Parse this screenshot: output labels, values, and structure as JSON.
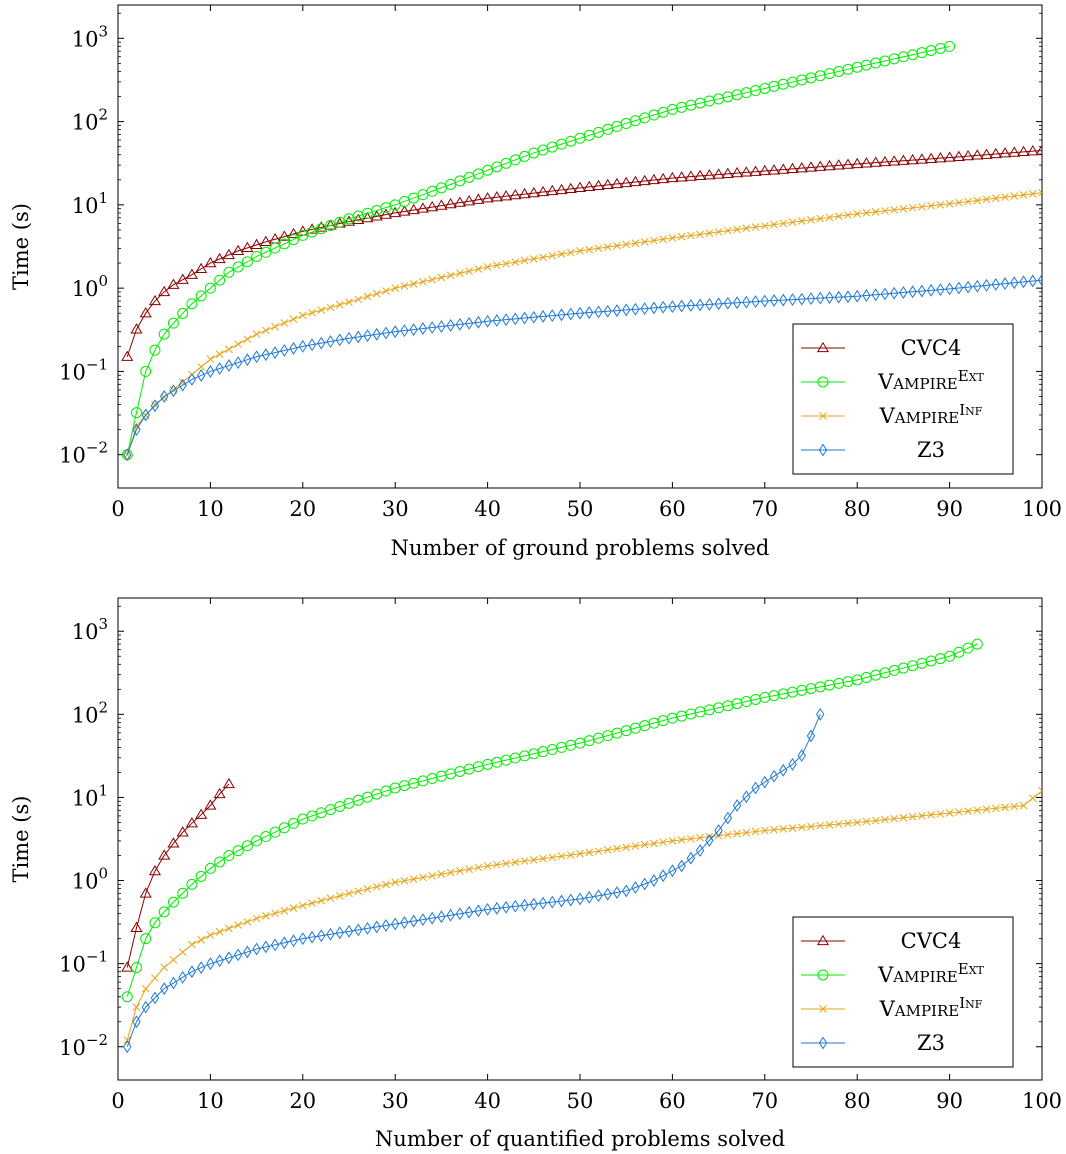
{
  "chart_data": [
    {
      "type": "line",
      "xlabel": "Number of ground problems solved",
      "ylabel": "Time (s)",
      "xlim": [
        0,
        100
      ],
      "ylim_log10": [
        -2.4,
        3.4
      ],
      "y_scale": "log",
      "grid": false,
      "legend_position": "bottom-right",
      "x_ticks": [
        "0",
        "10",
        "20",
        "30",
        "40",
        "50",
        "60",
        "70",
        "80",
        "90",
        "100"
      ],
      "y_ticks": [
        {
          "base": "10",
          "exp": "−2",
          "value": 0.01
        },
        {
          "base": "10",
          "exp": "−1",
          "value": 0.1
        },
        {
          "base": "10",
          "exp": "0",
          "value": 1
        },
        {
          "base": "10",
          "exp": "1",
          "value": 10
        },
        {
          "base": "10",
          "exp": "2",
          "value": 100
        },
        {
          "base": "10",
          "exp": "3",
          "value": 1000
        }
      ],
      "series": [
        {
          "name": "CVC4",
          "name_parts": [
            "CVC4",
            ""
          ],
          "marker": "triangle",
          "color": "#8b0000",
          "n": 100,
          "anchors": [
            [
              1,
              0.15
            ],
            [
              2,
              0.32
            ],
            [
              3,
              0.5
            ],
            [
              4,
              0.7
            ],
            [
              5,
              0.9
            ],
            [
              6,
              1.1
            ],
            [
              8,
              1.45
            ],
            [
              10,
              2.0
            ],
            [
              13,
              2.8
            ],
            [
              16,
              3.6
            ],
            [
              20,
              4.8
            ],
            [
              25,
              6.3
            ],
            [
              30,
              8.0
            ],
            [
              40,
              12.0
            ],
            [
              50,
              16.0
            ],
            [
              60,
              21.0
            ],
            [
              70,
              25.5
            ],
            [
              80,
              31.0
            ],
            [
              90,
              37.0
            ],
            [
              100,
              45.0
            ]
          ]
        },
        {
          "name": "VampireExt",
          "name_parts": [
            "Vampire",
            "Ext"
          ],
          "marker": "circle",
          "color": "#00ee00",
          "n": 90,
          "anchors": [
            [
              1,
              0.01
            ],
            [
              2,
              0.032
            ],
            [
              3,
              0.1
            ],
            [
              4,
              0.18
            ],
            [
              5,
              0.28
            ],
            [
              6,
              0.38
            ],
            [
              8,
              0.65
            ],
            [
              10,
              1.0
            ],
            [
              12,
              1.55
            ],
            [
              15,
              2.4
            ],
            [
              20,
              4.3
            ],
            [
              25,
              6.8
            ],
            [
              30,
              10.0
            ],
            [
              35,
              16.0
            ],
            [
              40,
              26.0
            ],
            [
              45,
              42.0
            ],
            [
              50,
              63.0
            ],
            [
              55,
              95.0
            ],
            [
              60,
              140.0
            ],
            [
              70,
              250.0
            ],
            [
              80,
              450.0
            ],
            [
              90,
              800.0
            ]
          ]
        },
        {
          "name": "VampireInf",
          "name_parts": [
            "Vampire",
            "Inf"
          ],
          "marker": "cross",
          "color": "#e8a317",
          "n": 100,
          "anchors": [
            [
              1,
              0.01
            ],
            [
              2,
              0.022
            ],
            [
              4,
              0.04
            ],
            [
              6,
              0.06
            ],
            [
              10,
              0.14
            ],
            [
              15,
              0.28
            ],
            [
              20,
              0.47
            ],
            [
              25,
              0.68
            ],
            [
              30,
              1.0
            ],
            [
              40,
              1.8
            ],
            [
              50,
              2.8
            ],
            [
              60,
              4.0
            ],
            [
              70,
              5.6
            ],
            [
              80,
              7.8
            ],
            [
              90,
              10.3
            ],
            [
              100,
              14.0
            ]
          ]
        },
        {
          "name": "Z3",
          "name_parts": [
            "Z3",
            ""
          ],
          "marker": "diamond",
          "color": "#1e78d6",
          "n": 100,
          "anchors": [
            [
              1,
              0.01
            ],
            [
              2,
              0.02
            ],
            [
              3,
              0.03
            ],
            [
              5,
              0.05
            ],
            [
              8,
              0.08
            ],
            [
              10,
              0.1
            ],
            [
              15,
              0.15
            ],
            [
              20,
              0.2
            ],
            [
              25,
              0.25
            ],
            [
              30,
              0.3
            ],
            [
              40,
              0.4
            ],
            [
              50,
              0.5
            ],
            [
              60,
              0.6
            ],
            [
              70,
              0.7
            ],
            [
              80,
              0.8
            ],
            [
              90,
              0.98
            ],
            [
              100,
              1.25
            ]
          ]
        }
      ]
    },
    {
      "type": "line",
      "xlabel": "Number of quantified problems solved",
      "ylabel": "Time (s)",
      "xlim": [
        0,
        100
      ],
      "ylim_log10": [
        -2.4,
        3.4
      ],
      "y_scale": "log",
      "grid": false,
      "legend_position": "bottom-right",
      "x_ticks": [
        "0",
        "10",
        "20",
        "30",
        "40",
        "50",
        "60",
        "70",
        "80",
        "90",
        "100"
      ],
      "y_ticks": [
        {
          "base": "10",
          "exp": "−2",
          "value": 0.01
        },
        {
          "base": "10",
          "exp": "−1",
          "value": 0.1
        },
        {
          "base": "10",
          "exp": "0",
          "value": 1
        },
        {
          "base": "10",
          "exp": "1",
          "value": 10
        },
        {
          "base": "10",
          "exp": "2",
          "value": 100
        },
        {
          "base": "10",
          "exp": "3",
          "value": 1000
        }
      ],
      "series": [
        {
          "name": "CVC4",
          "name_parts": [
            "CVC4",
            ""
          ],
          "marker": "triangle",
          "color": "#8b0000",
          "n": 12,
          "anchors": [
            [
              1,
              0.09
            ],
            [
              2,
              0.27
            ],
            [
              3,
              0.7
            ],
            [
              4,
              1.3
            ],
            [
              5,
              2.0
            ],
            [
              6,
              2.8
            ],
            [
              7,
              3.8
            ],
            [
              8,
              4.9
            ],
            [
              9,
              6.2
            ],
            [
              10,
              8.0
            ],
            [
              11,
              11.0
            ],
            [
              12,
              14.5
            ]
          ]
        },
        {
          "name": "VampireExt",
          "name_parts": [
            "Vampire",
            "Ext"
          ],
          "marker": "circle",
          "color": "#00ee00",
          "n": 93,
          "anchors": [
            [
              1,
              0.04
            ],
            [
              2,
              0.09
            ],
            [
              3,
              0.2
            ],
            [
              4,
              0.31
            ],
            [
              5,
              0.42
            ],
            [
              6,
              0.55
            ],
            [
              8,
              0.9
            ],
            [
              10,
              1.4
            ],
            [
              12,
              2.0
            ],
            [
              15,
              3.0
            ],
            [
              20,
              5.5
            ],
            [
              25,
              8.5
            ],
            [
              30,
              13.0
            ],
            [
              40,
              25.0
            ],
            [
              50,
              45.0
            ],
            [
              60,
              90.0
            ],
            [
              70,
              160.0
            ],
            [
              80,
              260.0
            ],
            [
              90,
              500.0
            ],
            [
              93,
              700.0
            ]
          ]
        },
        {
          "name": "VampireInf",
          "name_parts": [
            "Vampire",
            "Inf"
          ],
          "marker": "cross",
          "color": "#e8a317",
          "n": 100,
          "anchors": [
            [
              1,
              0.012
            ],
            [
              2,
              0.03
            ],
            [
              3,
              0.05
            ],
            [
              5,
              0.09
            ],
            [
              8,
              0.17
            ],
            [
              10,
              0.22
            ],
            [
              15,
              0.35
            ],
            [
              20,
              0.5
            ],
            [
              25,
              0.7
            ],
            [
              30,
              0.95
            ],
            [
              40,
              1.5
            ],
            [
              50,
              2.1
            ],
            [
              60,
              3.0
            ],
            [
              70,
              4.0
            ],
            [
              80,
              5.0
            ],
            [
              90,
              6.5
            ],
            [
              98,
              8.0
            ],
            [
              100,
              12.0
            ]
          ]
        },
        {
          "name": "Z3",
          "name_parts": [
            "Z3",
            ""
          ],
          "marker": "diamond",
          "color": "#1e78d6",
          "n": 76,
          "anchors": [
            [
              1,
              0.01
            ],
            [
              2,
              0.02
            ],
            [
              3,
              0.03
            ],
            [
              5,
              0.05
            ],
            [
              8,
              0.08
            ],
            [
              10,
              0.1
            ],
            [
              15,
              0.15
            ],
            [
              20,
              0.2
            ],
            [
              30,
              0.3
            ],
            [
              40,
              0.45
            ],
            [
              50,
              0.6
            ],
            [
              55,
              0.75
            ],
            [
              58,
              1.0
            ],
            [
              61,
              1.5
            ],
            [
              63,
              2.3
            ],
            [
              65,
              4.0
            ],
            [
              67,
              8.0
            ],
            [
              69,
              13.0
            ],
            [
              71,
              18.0
            ],
            [
              73,
              25.0
            ],
            [
              74,
              32.0
            ],
            [
              75,
              55.0
            ],
            [
              76,
              100.0
            ]
          ]
        }
      ]
    }
  ]
}
